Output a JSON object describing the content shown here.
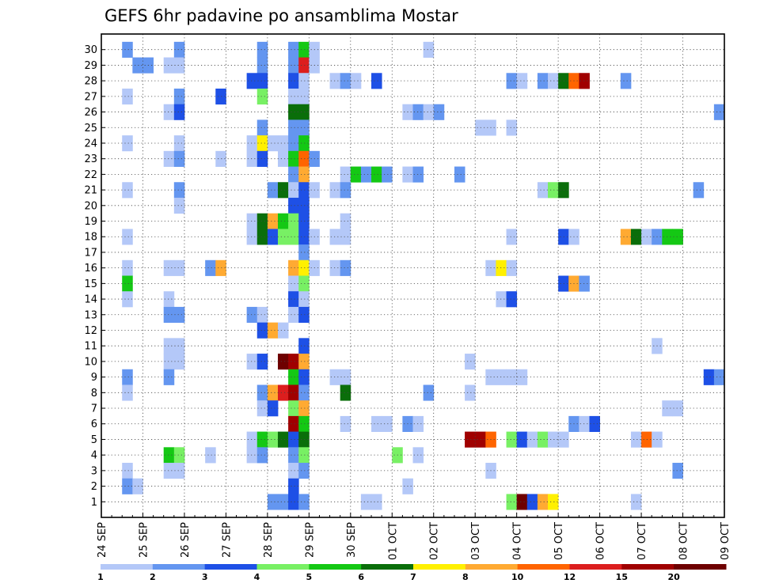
{
  "chart_data": {
    "type": "heatmap",
    "title": "GEFS 6hr padavine po ansamblima Mostar",
    "xlabel": "",
    "ylabel": "",
    "x_tick_labels": [
      "24 SEP",
      "25 SEP",
      "26 SEP",
      "27 SEP",
      "28 SEP",
      "29 SEP",
      "30 SEP",
      "01 OCT",
      "02 OCT",
      "03 OCT",
      "04 OCT",
      "05 OCT",
      "06 OCT",
      "07 OCT",
      "08 OCT",
      "09 OCT"
    ],
    "y_tick_labels": [
      "1",
      "2",
      "3",
      "4",
      "5",
      "6",
      "7",
      "8",
      "9",
      "10",
      "11",
      "12",
      "13",
      "14",
      "15",
      "16",
      "17",
      "18",
      "19",
      "20",
      "21",
      "22",
      "23",
      "24",
      "25",
      "26",
      "27",
      "28",
      "29",
      "30"
    ],
    "xlim": [
      0,
      60
    ],
    "ylim": [
      0,
      31
    ],
    "grid": true,
    "legend": {
      "placement": "bottom",
      "labels": [
        "1",
        "2",
        "3",
        "4",
        "5",
        "6",
        "7",
        "8",
        "10",
        "12",
        "15",
        "20"
      ],
      "colors": [
        "#b4c8f8",
        "#6496f0",
        "#1e50e6",
        "#78f064",
        "#14c814",
        "#0a6e0a",
        "#fff000",
        "#ffaa32",
        "#ff6400",
        "#dc1e1e",
        "#a00000",
        "#6e0000"
      ]
    },
    "cells": [
      [
        2,
        30,
        2
      ],
      [
        7,
        30,
        2
      ],
      [
        15,
        30,
        2
      ],
      [
        18,
        30,
        2
      ],
      [
        19,
        30,
        5
      ],
      [
        20,
        30,
        1
      ],
      [
        31,
        30,
        1
      ],
      [
        3,
        29,
        2
      ],
      [
        4,
        29,
        2
      ],
      [
        6,
        29,
        1
      ],
      [
        7,
        29,
        1
      ],
      [
        15,
        29,
        2
      ],
      [
        18,
        29,
        2
      ],
      [
        19,
        29,
        10
      ],
      [
        20,
        29,
        1
      ],
      [
        14,
        28,
        3
      ],
      [
        15,
        28,
        3
      ],
      [
        18,
        28,
        3
      ],
      [
        19,
        28,
        1
      ],
      [
        22,
        28,
        1
      ],
      [
        23,
        28,
        2
      ],
      [
        24,
        28,
        1
      ],
      [
        26,
        28,
        3
      ],
      [
        39,
        28,
        2
      ],
      [
        40,
        28,
        1
      ],
      [
        42,
        28,
        2
      ],
      [
        43,
        28,
        1
      ],
      [
        44,
        28,
        6
      ],
      [
        45,
        28,
        9
      ],
      [
        46,
        28,
        11
      ],
      [
        50,
        28,
        2
      ],
      [
        2,
        27,
        1
      ],
      [
        7,
        27,
        2
      ],
      [
        11,
        27,
        3
      ],
      [
        15,
        27,
        4
      ],
      [
        18,
        27,
        1
      ],
      [
        19,
        27,
        1
      ],
      [
        6,
        26,
        1
      ],
      [
        7,
        26,
        3
      ],
      [
        18,
        26,
        6
      ],
      [
        19,
        26,
        6
      ],
      [
        29,
        26,
        1
      ],
      [
        30,
        26,
        2
      ],
      [
        31,
        26,
        1
      ],
      [
        32,
        26,
        2
      ],
      [
        59,
        26,
        2
      ],
      [
        15,
        25,
        2
      ],
      [
        18,
        25,
        2
      ],
      [
        19,
        25,
        2
      ],
      [
        36,
        25,
        1
      ],
      [
        37,
        25,
        1
      ],
      [
        39,
        25,
        1
      ],
      [
        2,
        24,
        1
      ],
      [
        7,
        24,
        1
      ],
      [
        14,
        24,
        1
      ],
      [
        15,
        24,
        7
      ],
      [
        16,
        24,
        1
      ],
      [
        17,
        24,
        1
      ],
      [
        18,
        24,
        2
      ],
      [
        19,
        24,
        5
      ],
      [
        6,
        23,
        1
      ],
      [
        7,
        23,
        2
      ],
      [
        11,
        23,
        1
      ],
      [
        14,
        23,
        1
      ],
      [
        15,
        23,
        3
      ],
      [
        17,
        23,
        1
      ],
      [
        18,
        23,
        5
      ],
      [
        19,
        23,
        9
      ],
      [
        20,
        23,
        2
      ],
      [
        18,
        22,
        2
      ],
      [
        19,
        22,
        8
      ],
      [
        23,
        22,
        1
      ],
      [
        24,
        22,
        5
      ],
      [
        25,
        22,
        2
      ],
      [
        26,
        22,
        5
      ],
      [
        27,
        22,
        2
      ],
      [
        29,
        22,
        1
      ],
      [
        30,
        22,
        2
      ],
      [
        34,
        22,
        2
      ],
      [
        2,
        21,
        1
      ],
      [
        7,
        21,
        2
      ],
      [
        16,
        21,
        2
      ],
      [
        17,
        21,
        6
      ],
      [
        18,
        21,
        1
      ],
      [
        19,
        21,
        3
      ],
      [
        20,
        21,
        1
      ],
      [
        22,
        21,
        1
      ],
      [
        23,
        21,
        2
      ],
      [
        42,
        21,
        1
      ],
      [
        43,
        21,
        4
      ],
      [
        44,
        21,
        6
      ],
      [
        57,
        21,
        2
      ],
      [
        7,
        20,
        1
      ],
      [
        18,
        20,
        3
      ],
      [
        19,
        20,
        3
      ],
      [
        14,
        19,
        1
      ],
      [
        15,
        19,
        6
      ],
      [
        16,
        19,
        8
      ],
      [
        17,
        19,
        5
      ],
      [
        18,
        19,
        4
      ],
      [
        19,
        19,
        3
      ],
      [
        23,
        19,
        1
      ],
      [
        2,
        18,
        1
      ],
      [
        14,
        18,
        1
      ],
      [
        15,
        18,
        6
      ],
      [
        16,
        18,
        3
      ],
      [
        17,
        18,
        4
      ],
      [
        18,
        18,
        4
      ],
      [
        19,
        18,
        3
      ],
      [
        20,
        18,
        1
      ],
      [
        22,
        18,
        1
      ],
      [
        23,
        18,
        1
      ],
      [
        39,
        18,
        1
      ],
      [
        44,
        18,
        3
      ],
      [
        45,
        18,
        1
      ],
      [
        50,
        18,
        8
      ],
      [
        51,
        18,
        6
      ],
      [
        52,
        18,
        1
      ],
      [
        53,
        18,
        2
      ],
      [
        54,
        18,
        5
      ],
      [
        55,
        18,
        5
      ],
      [
        19,
        17,
        2
      ],
      [
        2,
        16,
        1
      ],
      [
        6,
        16,
        1
      ],
      [
        7,
        16,
        1
      ],
      [
        10,
        16,
        2
      ],
      [
        11,
        16,
        8
      ],
      [
        18,
        16,
        8
      ],
      [
        19,
        16,
        7
      ],
      [
        20,
        16,
        1
      ],
      [
        22,
        16,
        1
      ],
      [
        23,
        16,
        2
      ],
      [
        37,
        16,
        1
      ],
      [
        38,
        16,
        7
      ],
      [
        39,
        16,
        1
      ],
      [
        2,
        15,
        5
      ],
      [
        18,
        15,
        1
      ],
      [
        19,
        15,
        4
      ],
      [
        44,
        15,
        3
      ],
      [
        45,
        15,
        8
      ],
      [
        46,
        15,
        2
      ],
      [
        2,
        14,
        1
      ],
      [
        6,
        14,
        1
      ],
      [
        18,
        14,
        3
      ],
      [
        19,
        14,
        1
      ],
      [
        38,
        14,
        1
      ],
      [
        39,
        14,
        3
      ],
      [
        6,
        13,
        2
      ],
      [
        7,
        13,
        2
      ],
      [
        14,
        13,
        2
      ],
      [
        15,
        13,
        1
      ],
      [
        18,
        13,
        1
      ],
      [
        19,
        13,
        3
      ],
      [
        15,
        12,
        3
      ],
      [
        16,
        12,
        8
      ],
      [
        17,
        12,
        1
      ],
      [
        6,
        11,
        1
      ],
      [
        7,
        11,
        1
      ],
      [
        19,
        11,
        3
      ],
      [
        53,
        11,
        1
      ],
      [
        6,
        10,
        1
      ],
      [
        7,
        10,
        1
      ],
      [
        14,
        10,
        1
      ],
      [
        15,
        10,
        3
      ],
      [
        17,
        10,
        12
      ],
      [
        18,
        10,
        11
      ],
      [
        19,
        10,
        8
      ],
      [
        35,
        10,
        1
      ],
      [
        2,
        9,
        2
      ],
      [
        6,
        9,
        2
      ],
      [
        18,
        9,
        5
      ],
      [
        19,
        9,
        3
      ],
      [
        22,
        9,
        1
      ],
      [
        23,
        9,
        1
      ],
      [
        37,
        9,
        1
      ],
      [
        38,
        9,
        1
      ],
      [
        39,
        9,
        1
      ],
      [
        40,
        9,
        1
      ],
      [
        58,
        9,
        3
      ],
      [
        59,
        9,
        2
      ],
      [
        2,
        8,
        1
      ],
      [
        15,
        8,
        2
      ],
      [
        16,
        8,
        8
      ],
      [
        17,
        8,
        10
      ],
      [
        18,
        8,
        11
      ],
      [
        19,
        8,
        2
      ],
      [
        23,
        8,
        6
      ],
      [
        31,
        8,
        2
      ],
      [
        35,
        8,
        1
      ],
      [
        15,
        7,
        1
      ],
      [
        16,
        7,
        3
      ],
      [
        18,
        7,
        4
      ],
      [
        19,
        7,
        8
      ],
      [
        54,
        7,
        1
      ],
      [
        55,
        7,
        1
      ],
      [
        18,
        6,
        11
      ],
      [
        19,
        6,
        5
      ],
      [
        23,
        6,
        1
      ],
      [
        26,
        6,
        1
      ],
      [
        27,
        6,
        1
      ],
      [
        29,
        6,
        2
      ],
      [
        30,
        6,
        1
      ],
      [
        45,
        6,
        2
      ],
      [
        46,
        6,
        1
      ],
      [
        47,
        6,
        3
      ],
      [
        14,
        5,
        1
      ],
      [
        15,
        5,
        5
      ],
      [
        16,
        5,
        4
      ],
      [
        17,
        5,
        6
      ],
      [
        18,
        5,
        3
      ],
      [
        19,
        5,
        6
      ],
      [
        35,
        5,
        11
      ],
      [
        36,
        5,
        11
      ],
      [
        37,
        5,
        9
      ],
      [
        39,
        5,
        4
      ],
      [
        40,
        5,
        3
      ],
      [
        41,
        5,
        1
      ],
      [
        42,
        5,
        4
      ],
      [
        43,
        5,
        1
      ],
      [
        44,
        5,
        1
      ],
      [
        51,
        5,
        1
      ],
      [
        52,
        5,
        9
      ],
      [
        53,
        5,
        1
      ],
      [
        6,
        4,
        5
      ],
      [
        7,
        4,
        4
      ],
      [
        10,
        4,
        1
      ],
      [
        14,
        4,
        1
      ],
      [
        15,
        4,
        2
      ],
      [
        18,
        4,
        2
      ],
      [
        19,
        4,
        4
      ],
      [
        28,
        4,
        4
      ],
      [
        30,
        4,
        1
      ],
      [
        2,
        3,
        1
      ],
      [
        6,
        3,
        1
      ],
      [
        7,
        3,
        1
      ],
      [
        18,
        3,
        1
      ],
      [
        19,
        3,
        2
      ],
      [
        37,
        3,
        1
      ],
      [
        55,
        3,
        2
      ],
      [
        2,
        2,
        2
      ],
      [
        3,
        2,
        1
      ],
      [
        18,
        2,
        3
      ],
      [
        29,
        2,
        1
      ],
      [
        16,
        1,
        2
      ],
      [
        17,
        1,
        2
      ],
      [
        18,
        1,
        3
      ],
      [
        19,
        1,
        2
      ],
      [
        25,
        1,
        1
      ],
      [
        26,
        1,
        1
      ],
      [
        39,
        1,
        4
      ],
      [
        40,
        1,
        12
      ],
      [
        41,
        1,
        3
      ],
      [
        42,
        1,
        8
      ],
      [
        43,
        1,
        7
      ],
      [
        51,
        1,
        1
      ]
    ]
  }
}
